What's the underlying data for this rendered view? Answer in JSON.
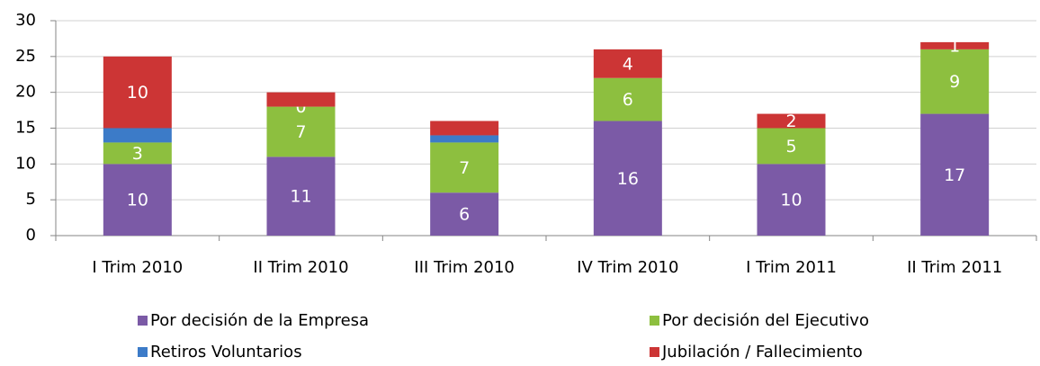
{
  "chart_data": {
    "type": "stacked_bar",
    "categories": [
      "I Trim 2010",
      "II Trim 2010",
      "III Trim 2010",
      "IV Trim 2010",
      "I Trim 2011",
      "II Trim 2011"
    ],
    "series": [
      {
        "name": "Por decisión de la Empresa",
        "color": "#7b5aa6",
        "values": [
          10,
          11,
          6,
          16,
          10,
          17
        ],
        "value_labels": [
          "10",
          "11",
          "6",
          "16",
          "10",
          "17"
        ]
      },
      {
        "name": "Por decisión del Ejecutivo",
        "color": "#8dbf3f",
        "values": [
          3,
          7,
          7,
          6,
          5,
          9
        ],
        "value_labels": [
          "3",
          "7",
          "7",
          "6",
          "5",
          "9"
        ]
      },
      {
        "name": "Retiros Voluntarios",
        "color": "#3c7bc8",
        "values": [
          2,
          0,
          1,
          0,
          0,
          0
        ],
        "value_labels": [
          null,
          "0",
          null,
          null,
          null,
          null
        ]
      },
      {
        "name": "Jubilación / Fallecimiento",
        "color": "#cc3535",
        "values": [
          10,
          2,
          2,
          4,
          2,
          1
        ],
        "value_labels": [
          "10",
          null,
          null,
          "4",
          "2",
          "1"
        ]
      }
    ],
    "ylim": [
      0,
      30
    ],
    "yticks": [
      0,
      5,
      10,
      15,
      20,
      25,
      30
    ],
    "grid": true,
    "legend": "bottom"
  }
}
